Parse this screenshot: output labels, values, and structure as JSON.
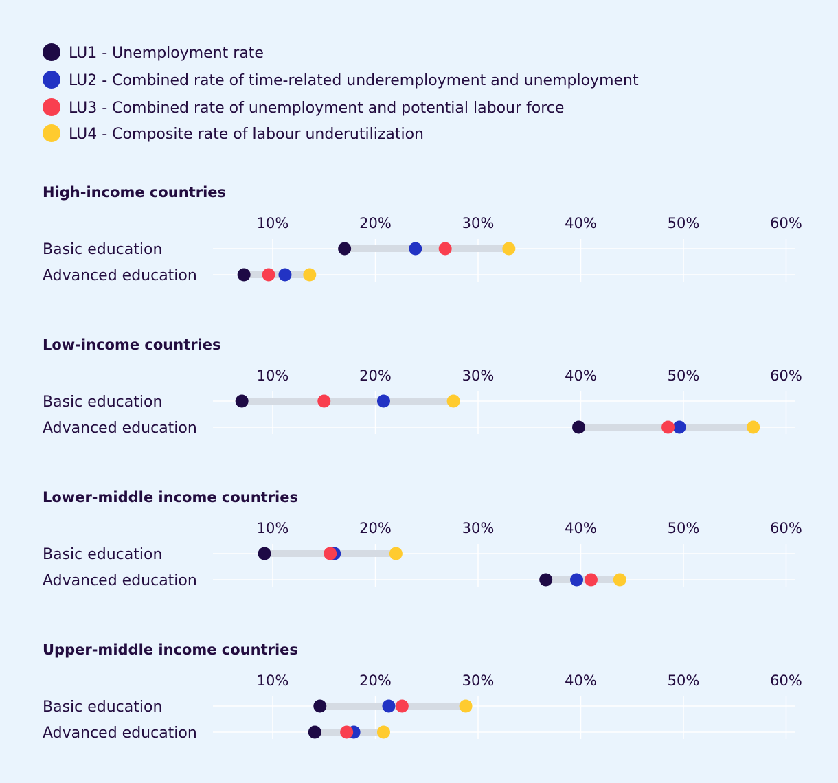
{
  "colors": {
    "background": "#eaf4fd",
    "text": "#230c3f",
    "gridline": "#ffffff",
    "range_bar": "#d5dbe3"
  },
  "legend": [
    {
      "key": "LU1",
      "label": "LU1 - Unemployment rate",
      "color": "#1e0a45"
    },
    {
      "key": "LU2",
      "label": "LU2 - Combined rate of time-related underemployment and unemployment",
      "color": "#2233c4"
    },
    {
      "key": "LU3",
      "label": "LU3 - Combined rate of unemployment and potential labour force",
      "color": "#f93f4f"
    },
    {
      "key": "LU4",
      "label": "LU4 - Composite rate of labour underutilization",
      "color": "#ffcb2f"
    }
  ],
  "chart_data": {
    "type": "dot-range",
    "x_ticks": [
      10,
      20,
      30,
      40,
      50,
      60
    ],
    "x_tick_labels": [
      "10%",
      "20%",
      "30%",
      "40%",
      "50%",
      "60%"
    ],
    "x_range": [
      4.2,
      60.2
    ],
    "series_keys": [
      "LU1",
      "LU2",
      "LU3",
      "LU4"
    ],
    "panels": [
      {
        "title": "High-income countries",
        "rows": [
          {
            "label": "Basic education",
            "values": {
              "LU1": 17.0,
              "LU2": 23.9,
              "LU3": 26.8,
              "LU4": 33.0
            }
          },
          {
            "label": "Advanced education",
            "values": {
              "LU1": 7.2,
              "LU2": 11.2,
              "LU3": 9.6,
              "LU4": 13.6
            }
          }
        ]
      },
      {
        "title": "Low-income countries",
        "rows": [
          {
            "label": "Basic education",
            "values": {
              "LU1": 7.0,
              "LU2": 20.8,
              "LU3": 15.0,
              "LU4": 27.6
            }
          },
          {
            "label": "Advanced education",
            "values": {
              "LU1": 39.8,
              "LU2": 49.6,
              "LU3": 48.5,
              "LU4": 56.8
            }
          }
        ]
      },
      {
        "title": "Lower-middle income countries",
        "rows": [
          {
            "label": "Basic education",
            "values": {
              "LU1": 9.2,
              "LU2": 16.0,
              "LU3": 15.6,
              "LU4": 22.0
            }
          },
          {
            "label": "Advanced education",
            "values": {
              "LU1": 36.6,
              "LU2": 39.6,
              "LU3": 41.0,
              "LU4": 43.8
            }
          }
        ]
      },
      {
        "title": "Upper-middle income countries",
        "rows": [
          {
            "label": "Basic education",
            "values": {
              "LU1": 14.6,
              "LU2": 21.3,
              "LU3": 22.6,
              "LU4": 28.8
            }
          },
          {
            "label": "Advanced education",
            "values": {
              "LU1": 14.1,
              "LU2": 17.9,
              "LU3": 17.2,
              "LU4": 20.8
            }
          }
        ]
      }
    ]
  }
}
